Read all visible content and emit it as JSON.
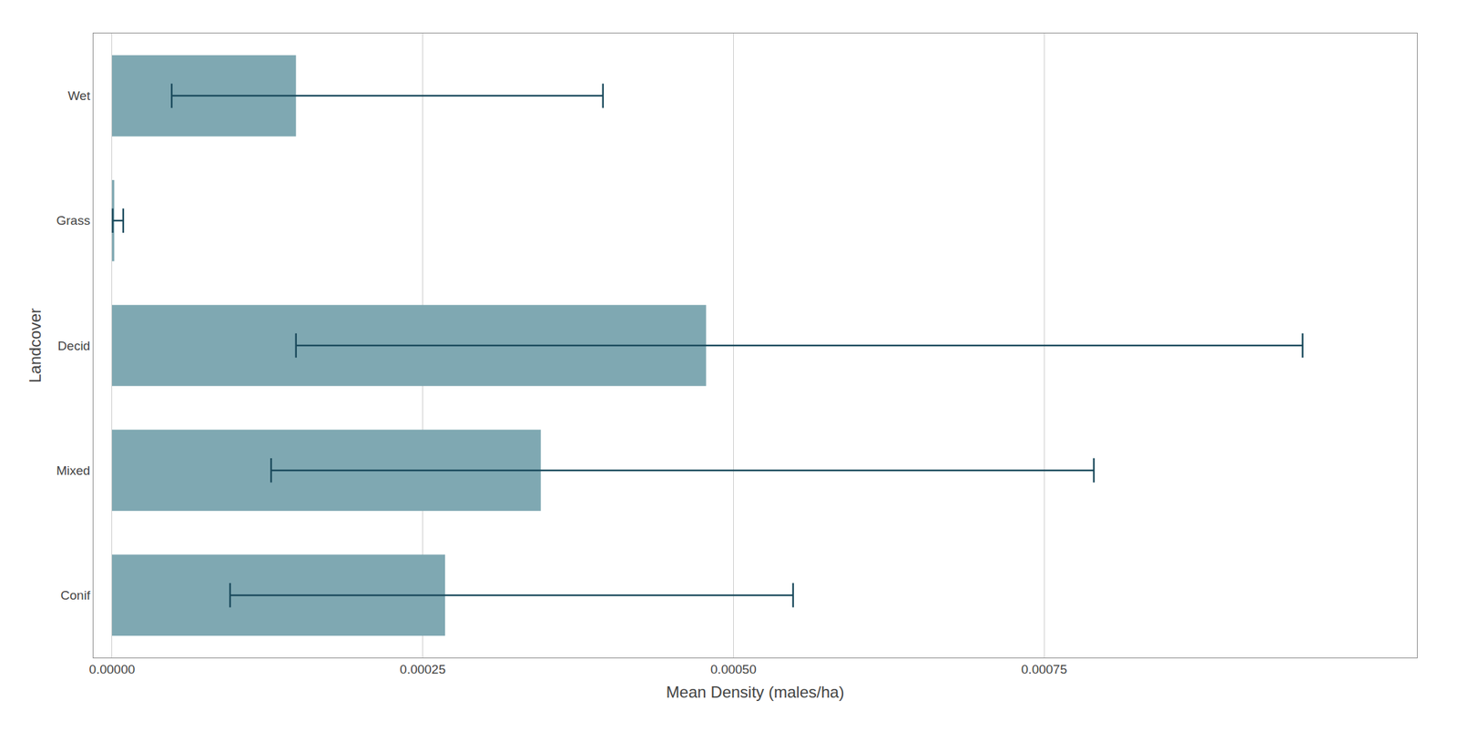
{
  "chart_data": {
    "type": "bar",
    "orientation": "horizontal",
    "categories": [
      "Wet",
      "Grass",
      "Decid",
      "Mixed",
      "Conif"
    ],
    "values": [
      0.000148,
      1.8e-06,
      0.000478,
      0.000345,
      0.000268
    ],
    "ci_lower": [
      4.8e-05,
      5e-07,
      0.000148,
      0.000128,
      9.5e-05
    ],
    "ci_upper": [
      0.000395,
      9e-06,
      0.000958,
      0.00079,
      0.000548
    ],
    "color": "#7fa8b2",
    "errorbar_color": "#1a4a5c",
    "xlabel": "Mean Density (males/ha)",
    "ylabel": "Landcover",
    "xlim": [
      -1.5e-05,
      0.00105
    ],
    "xticks": [
      {
        "value": 0,
        "label": "0.00000"
      },
      {
        "value": 0.00025,
        "label": "0.00025"
      },
      {
        "value": 0.0005,
        "label": "0.00050"
      },
      {
        "value": 0.00075,
        "label": "0.00075"
      }
    ],
    "grid": "x"
  }
}
